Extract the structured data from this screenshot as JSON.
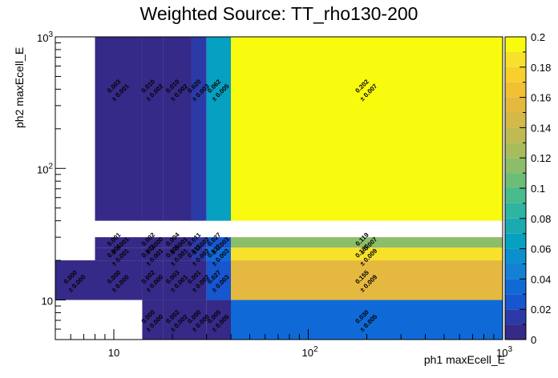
{
  "chart_data": {
    "type": "heatmap",
    "title": "Weighted Source: TT_rho130-200",
    "xlabel": "ph1 maxEcell_E",
    "ylabel": "ph2 maxEcell_E",
    "x_scale": "log",
    "y_scale": "log",
    "xlim": [
      5,
      1000
    ],
    "ylim": [
      5,
      1000
    ],
    "x_ticks": [
      "10",
      "10^2",
      "10^3"
    ],
    "y_ticks": [
      "10",
      "10^2",
      "10^3"
    ],
    "x_edges": [
      5,
      8,
      14,
      18,
      25,
      30,
      40,
      1000
    ],
    "y_edges": [
      5,
      10,
      20,
      25,
      30,
      40,
      1000
    ],
    "z_max": 0.2,
    "colorbar_ticks": [
      "0",
      "0.02",
      "0.04",
      "0.06",
      "0.08",
      "0.1",
      "0.12",
      "0.14",
      "0.16",
      "0.18",
      "0.2"
    ],
    "cells": [
      {
        "x": 0,
        "y": 1,
        "value": 0.0,
        "error": 0.0
      },
      {
        "x": 1,
        "y": 1,
        "value": 0.0,
        "error": 0.0
      },
      {
        "x": 2,
        "y": 0,
        "value": 0.0,
        "error": 0.0
      },
      {
        "x": 3,
        "y": 0,
        "value": 0.002,
        "error": 0.002
      },
      {
        "x": 4,
        "y": 0,
        "value": 0.0,
        "error": 0.0
      },
      {
        "x": 5,
        "y": 0,
        "value": 0.005,
        "error": 0.005
      },
      {
        "x": 6,
        "y": 0,
        "value": 0.03,
        "error": 0.005
      },
      {
        "x": 2,
        "y": 1,
        "value": 0.002,
        "error": 0.0
      },
      {
        "x": 3,
        "y": 1,
        "value": 0.003,
        "error": 0.001
      },
      {
        "x": 4,
        "y": 1,
        "value": 0.001,
        "error": 0.002
      },
      {
        "x": 5,
        "y": 1,
        "value": 0.027,
        "error": 0.003
      },
      {
        "x": 6,
        "y": 1,
        "value": 0.155,
        "error": 0.009
      },
      {
        "x": 1,
        "y": 2,
        "value": 0.004,
        "error": 0.001
      },
      {
        "x": 2,
        "y": 2,
        "value": 0.003,
        "error": 0.001
      },
      {
        "x": 3,
        "y": 2,
        "value": 0.006,
        "error": 0.001
      },
      {
        "x": 4,
        "y": 2,
        "value": 0.013,
        "error": 0.002
      },
      {
        "x": 5,
        "y": 2,
        "value": 0.032,
        "error": 0.003
      },
      {
        "x": 6,
        "y": 2,
        "value": 0.18,
        "error": 0.009
      },
      {
        "x": 1,
        "y": 3,
        "value": 0.001,
        "error": 0.001
      },
      {
        "x": 2,
        "y": 3,
        "value": 0.002,
        "error": 0.0
      },
      {
        "x": 3,
        "y": 3,
        "value": 0.004,
        "error": 0.001
      },
      {
        "x": 4,
        "y": 3,
        "value": 0.011,
        "error": 0.002
      },
      {
        "x": 5,
        "y": 3,
        "value": 0.027,
        "error": 0.003
      },
      {
        "x": 6,
        "y": 3,
        "value": 0.119,
        "error": 0.007
      },
      {
        "x": 1,
        "y": 5,
        "value": 0.003,
        "error": 0.001
      },
      {
        "x": 2,
        "y": 5,
        "value": 0.01,
        "error": 0.002
      },
      {
        "x": 3,
        "y": 5,
        "value": 0.01,
        "error": 0.002
      },
      {
        "x": 4,
        "y": 5,
        "value": 0.02,
        "error": 0.003
      },
      {
        "x": 5,
        "y": 5,
        "value": 0.062,
        "error": 0.005
      },
      {
        "x": 6,
        "y": 5,
        "value": 0.202,
        "error": 0.007
      }
    ]
  }
}
